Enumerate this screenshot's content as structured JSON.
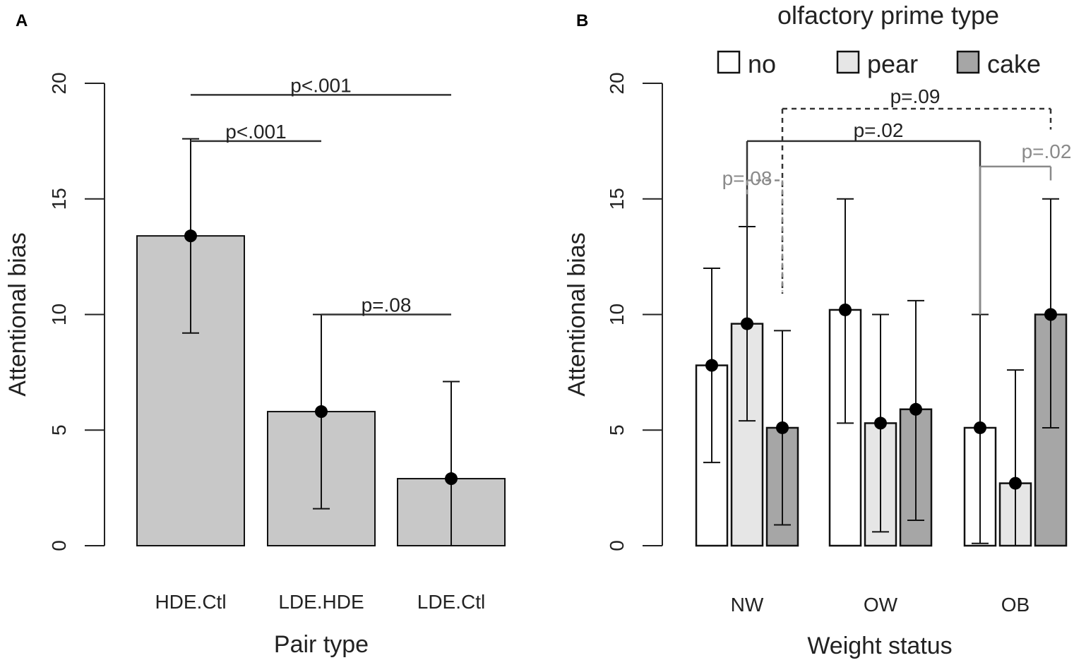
{
  "colors": {
    "bar_gray": "#c8c8c8",
    "bar_none": "#ffffff",
    "bar_pear": "#e6e6e6",
    "bar_cake": "#a6a6a6",
    "axis": "#222222",
    "sig_dark": "#333333",
    "sig_gray": "#8a8a8a"
  },
  "chart_data": [
    {
      "panel": "A",
      "type": "bar",
      "title": "",
      "xlabel": "Pair type",
      "ylabel": "Attentional bias",
      "ylim": [
        0,
        20
      ],
      "yticks": [
        "0",
        "5",
        "10",
        "15",
        "20"
      ],
      "categories": [
        "HDE.Ctl",
        "LDE.HDE",
        "LDE.Ctl"
      ],
      "values": [
        13.4,
        5.8,
        2.9
      ],
      "error_low": [
        9.2,
        1.6,
        0.0
      ],
      "error_high": [
        17.6,
        10.0,
        7.1
      ],
      "significance": [
        {
          "label": "p<.001",
          "from": 0,
          "to": 2,
          "y": 19.5,
          "style": "solid",
          "color": "dark"
        },
        {
          "label": "p<.001",
          "from": 0,
          "to": 1,
          "y": 17.5,
          "style": "solid",
          "color": "dark"
        },
        {
          "label": "p=.08",
          "from": 1,
          "to": 2,
          "y": 10.0,
          "style": "solid",
          "color": "dark"
        }
      ]
    },
    {
      "panel": "B",
      "type": "bar",
      "title": "",
      "xlabel": "Weight status",
      "ylabel": "Attentional bias",
      "ylim": [
        0,
        20
      ],
      "yticks": [
        "0",
        "5",
        "10",
        "15",
        "20"
      ],
      "categories": [
        "NW",
        "OW",
        "OB"
      ],
      "legend_title": "olfactory prime type",
      "series": [
        {
          "name": "no",
          "values": [
            7.8,
            10.2,
            5.1
          ],
          "error_low": [
            3.6,
            5.3,
            0.1
          ],
          "error_high": [
            12.0,
            15.0,
            10.0
          ]
        },
        {
          "name": "pear",
          "values": [
            9.6,
            5.3,
            2.7
          ],
          "error_low": [
            5.4,
            0.6,
            0.0
          ],
          "error_high": [
            13.8,
            10.0,
            7.6
          ]
        },
        {
          "name": "cake",
          "values": [
            5.1,
            5.9,
            10.0
          ],
          "error_low": [
            0.9,
            1.1,
            5.1
          ],
          "error_high": [
            9.3,
            10.6,
            15.0
          ]
        }
      ],
      "significance": [
        {
          "label": "p=.09",
          "from": [
            0,
            2
          ],
          "to": [
            2,
            2
          ],
          "y": 18.9,
          "drop_to": [
            10.9,
            18.0
          ],
          "style": "dashed",
          "color": "dark"
        },
        {
          "label": "p=.02",
          "from": [
            0,
            1
          ],
          "to": [
            2,
            0
          ],
          "y": 17.5,
          "drop_to": [
            13.8,
            10.0
          ],
          "style": "solid",
          "color": "dark"
        },
        {
          "label": "p=.08",
          "from": [
            0,
            1
          ],
          "to": [
            0,
            2
          ],
          "y": 15.8,
          "drop_to": [
            15.2,
            11.0
          ],
          "style": "dashed",
          "color": "gray"
        },
        {
          "label": "p=.02",
          "from": [
            2,
            0
          ],
          "to": [
            2,
            2
          ],
          "y": 16.4,
          "drop_to": [
            10.0,
            15.8
          ],
          "style": "solid",
          "color": "gray"
        }
      ]
    }
  ],
  "panels": {
    "a_letter": "A",
    "b_letter": "B"
  }
}
